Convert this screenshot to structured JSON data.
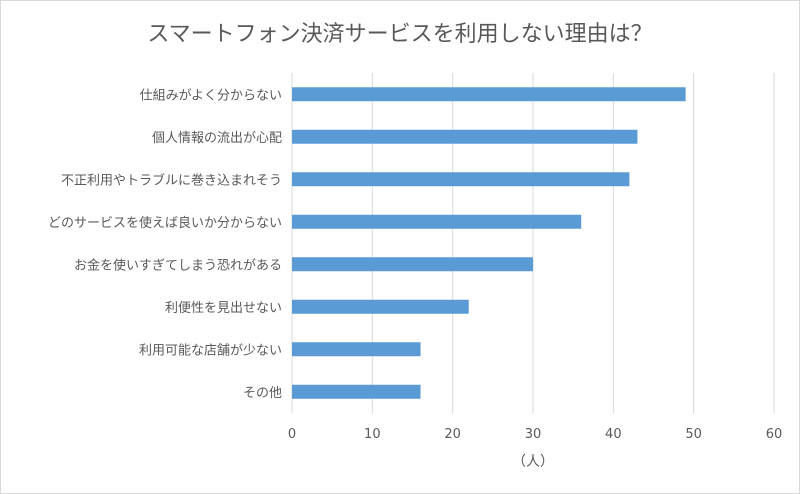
{
  "chart_data": {
    "type": "bar",
    "orientation": "horizontal",
    "title": "スマートフォン決済サービスを利用しない理由は？",
    "xlabel": "（人）",
    "ylabel": "",
    "categories": [
      "仕組みがよく分からない",
      "個人情報の流出が心配",
      "不正利用やトラブルに巻き込まれそう",
      "どのサービスを使えば良いか分からない",
      "お金を使いすぎてしまう恐れがある",
      "利便性を見出せない",
      "利用可能な店舗が少ない",
      "その他"
    ],
    "values": [
      49,
      43,
      42,
      36,
      30,
      22,
      16,
      16
    ],
    "xlim": [
      0,
      60
    ],
    "xticks": [
      0,
      10,
      20,
      30,
      40,
      50,
      60
    ],
    "grid": true,
    "legend": "none",
    "bar_color": "#5b9bd5"
  }
}
